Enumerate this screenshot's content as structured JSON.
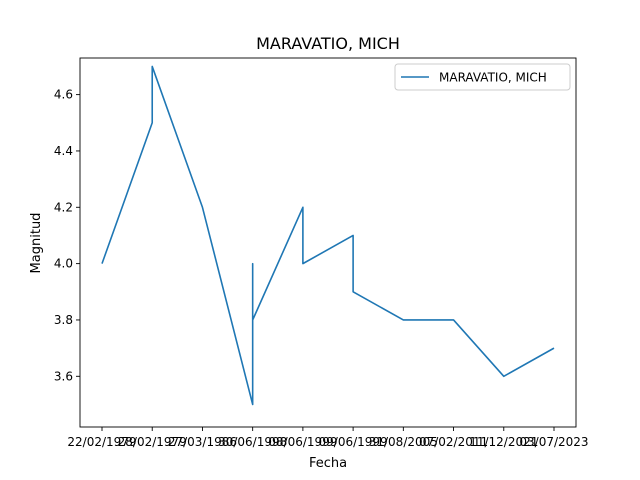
{
  "chart_data": {
    "type": "line",
    "title": "MARAVATIO, MICH",
    "xlabel": "Fecha",
    "ylabel": "Magnitud",
    "categories": [
      "22/02/1979",
      "28/02/1979",
      "27/03/1986",
      "30/06/1998",
      "08/06/1999",
      "09/06/1999",
      "31/08/2005",
      "07/02/2011",
      "11/12/2021",
      "03/07/2023"
    ],
    "x_ticks": [
      "22/02/1979",
      "28/02/1979",
      "27/03/1986",
      "30/06/1998",
      "08/06/1999",
      "09/06/1999",
      "31/08/2005",
      "07/02/2011",
      "11/12/2021",
      "03/07/2023"
    ],
    "ylim": [
      3.42,
      4.73
    ],
    "y_ticks": [
      3.6,
      3.8,
      4.0,
      4.2,
      4.4,
      4.6
    ],
    "y_tick_labels": [
      "3.6",
      "3.8",
      "4.0",
      "4.2",
      "4.4",
      "4.6"
    ],
    "grid": false,
    "legend_position": "top-right",
    "series": [
      {
        "name": "MARAVATIO, MICH",
        "color": "#1f77b4",
        "points": [
          {
            "x": 0,
            "y": 4.0
          },
          {
            "x": 1,
            "y": 4.5
          },
          {
            "x": 1,
            "y": 4.7
          },
          {
            "x": 2,
            "y": 4.2
          },
          {
            "x": 3,
            "y": 3.5
          },
          {
            "x": 3,
            "y": 4.0
          },
          {
            "x": 3,
            "y": 3.8
          },
          {
            "x": 4,
            "y": 4.2
          },
          {
            "x": 4,
            "y": 4.0
          },
          {
            "x": 5,
            "y": 4.1
          },
          {
            "x": 5,
            "y": 3.9
          },
          {
            "x": 6,
            "y": 3.8
          },
          {
            "x": 7,
            "y": 3.8
          },
          {
            "x": 8,
            "y": 3.6
          },
          {
            "x": 9,
            "y": 3.7
          }
        ]
      }
    ]
  }
}
